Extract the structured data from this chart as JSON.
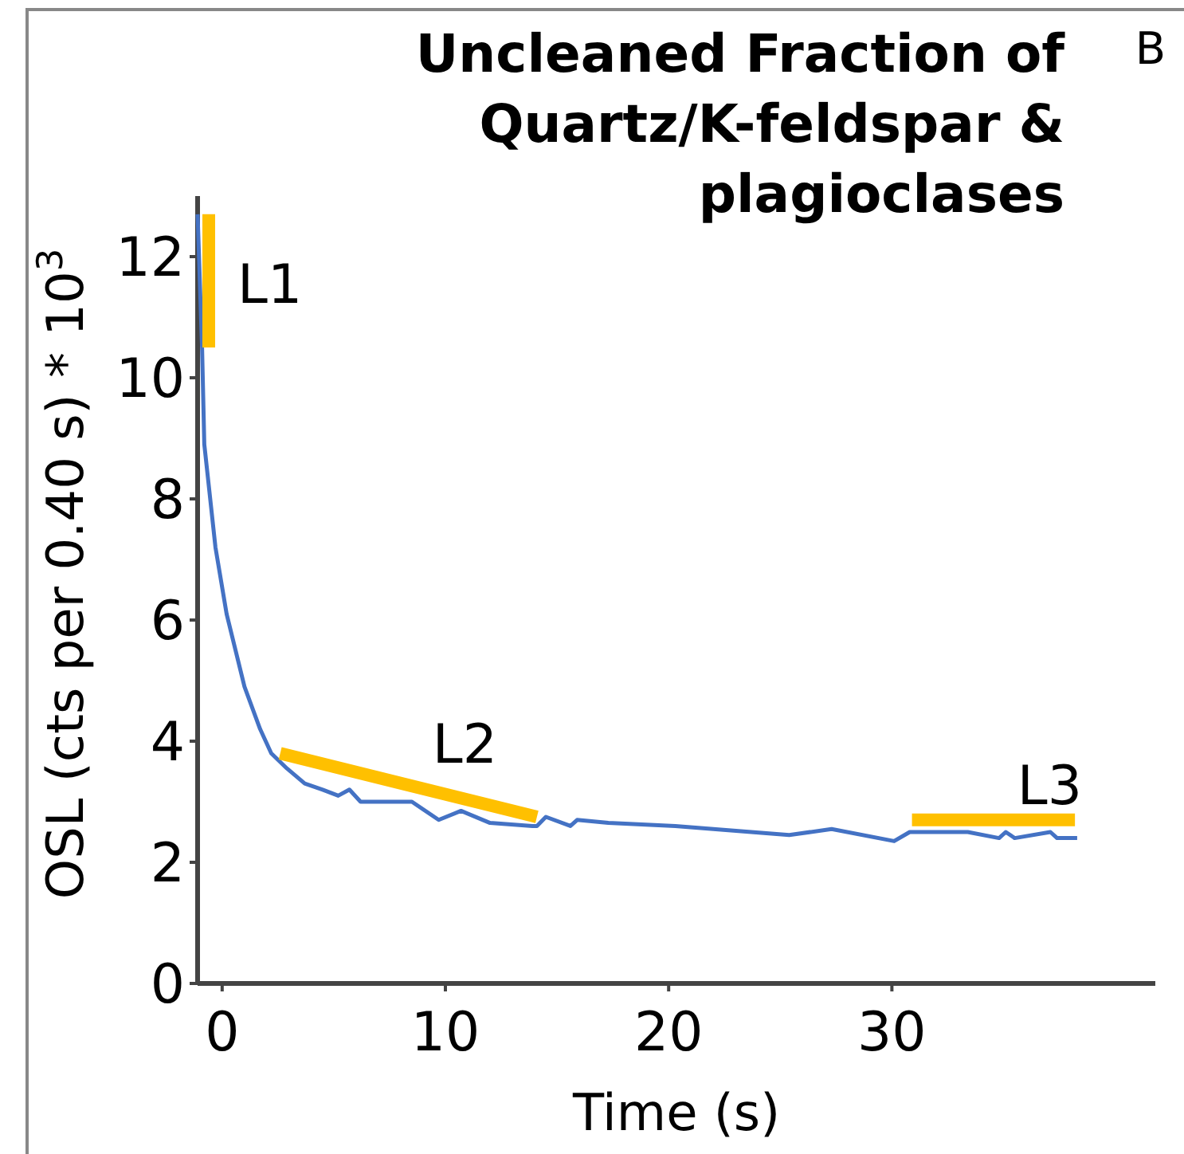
{
  "chart_data": {
    "type": "line",
    "title": "Uncleaned Fraction of Quartz/K-feldspar & plagioclases",
    "xlabel": "Time (s)",
    "ylabel": "OSL (cts per 0.40 s) * 10$^{3}$",
    "annotations": [
      "B"
    ],
    "xlim": [
      -1.1,
      41.8
    ],
    "xticks": [
      0,
      10,
      20,
      30
    ],
    "ylim": [
      0,
      13
    ],
    "yticks": [
      0,
      2,
      4,
      6,
      8,
      10,
      12
    ],
    "grid": false,
    "series": [
      {
        "color": "#4472c4",
        "x": [
          -1.1,
          -0.9,
          -0.8,
          -0.3,
          0.2,
          1.0,
          1.7,
          2.2,
          2.9,
          3.7,
          4.5,
          5.2,
          5.7,
          6.2,
          7.7,
          8.5,
          9.7,
          10.7,
          12,
          13.9,
          14.1,
          14.5,
          15.6,
          15.9,
          17.3,
          20.3,
          25.4,
          27.3,
          30.1,
          30.8,
          33.4,
          34.8,
          35.1,
          35.5,
          37.1,
          37.4,
          38.3
        ],
        "values": [
          12.7,
          10.5,
          8.9,
          7.2,
          6.1,
          4.9,
          4.2,
          3.8,
          3.55,
          3.3,
          3.2,
          3.1,
          3.2,
          3.0,
          3.0,
          3.0,
          2.7,
          2.85,
          2.65,
          2.6,
          2.6,
          2.75,
          2.6,
          2.7,
          2.65,
          2.6,
          2.45,
          2.55,
          2.35,
          2.5,
          2.5,
          2.4,
          2.5,
          2.4,
          2.5,
          2.4,
          2.4
        ]
      },
      {
        "name": "L1",
        "color": "#ffc000",
        "x": [
          -0.6,
          -0.6
        ],
        "values": [
          12.7,
          10.5
        ]
      },
      {
        "name": "L2",
        "color": "#ffc000",
        "x": [
          2.6,
          14.1
        ],
        "values": [
          3.8,
          2.75
        ]
      },
      {
        "name": "L3",
        "color": "#ffc000",
        "x": [
          30.9,
          38.2
        ],
        "values": [
          2.7,
          2.7
        ]
      }
    ]
  }
}
